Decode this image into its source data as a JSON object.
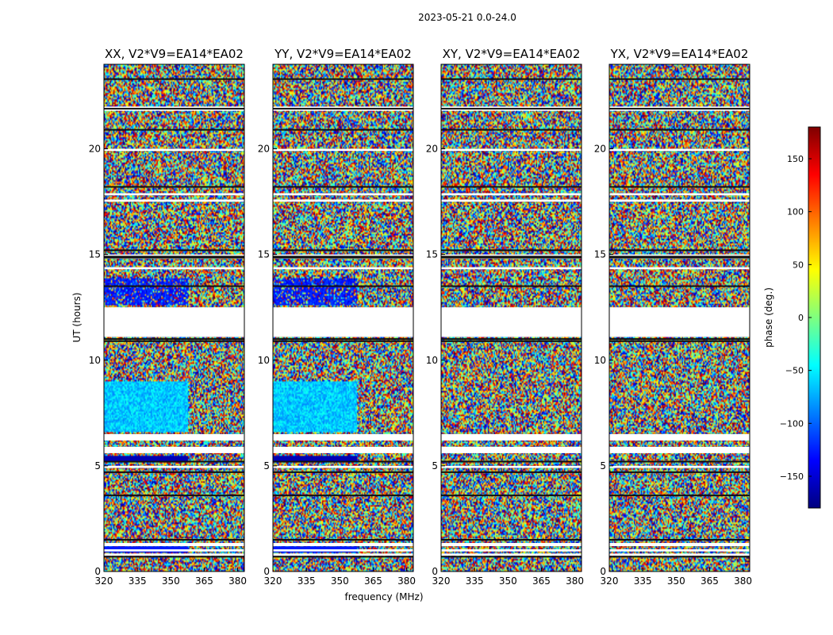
{
  "chart_data": {
    "type": "heatmap",
    "suptitle": "2023-05-21 0.0-24.0",
    "xlabel": "frequency (MHz)",
    "ylabel": "UT (hours)",
    "xlim": [
      320,
      383
    ],
    "ylim": [
      0,
      24
    ],
    "x_ticks": [
      "320",
      "335",
      "350",
      "365",
      "380"
    ],
    "y_ticks": [
      "0",
      "5",
      "10",
      "15",
      "20"
    ],
    "colorbar": {
      "label": "phase (deg.)",
      "range": [
        -180,
        180
      ],
      "ticks": [
        "150",
        "100",
        "50",
        "0",
        "−50",
        "−100",
        "−150"
      ],
      "colormap": [
        "#00007f",
        "#0000ff",
        "#007fff",
        "#00ffff",
        "#7fff7f",
        "#ffff00",
        "#ff7f00",
        "#ff0000",
        "#7f0000"
      ]
    },
    "panels": [
      {
        "title": "XX, V2*V9=EA14*EA02",
        "seed": 11,
        "blue_blocks": true
      },
      {
        "title": "YY, V2*V9=EA14*EA02",
        "seed": 23,
        "blue_blocks": true
      },
      {
        "title": "XY, V2*V9=EA14*EA02",
        "seed": 37,
        "blue_blocks": false
      },
      {
        "title": "YX, V2*V9=EA14*EA02",
        "seed": 53,
        "blue_blocks": false
      }
    ],
    "gaps_ut_hours": [
      [
        12.5,
        11.1
      ],
      [
        22.0,
        21.8
      ],
      [
        20.0,
        19.9
      ],
      [
        17.9,
        17.8
      ],
      [
        17.6,
        17.5
      ],
      [
        15.0,
        14.8
      ],
      [
        14.4,
        14.3
      ],
      [
        6.5,
        6.2
      ],
      [
        5.9,
        5.6
      ],
      [
        5.0,
        4.9
      ],
      [
        1.35,
        1.2
      ],
      [
        1.05,
        0.95
      ],
      [
        0.85,
        0.75
      ]
    ],
    "dark_lines_ut_hours": [
      23.3,
      21.9,
      20.9,
      18.2,
      15.2,
      14.9,
      14.85,
      13.5,
      11.0,
      10.9,
      5.2,
      4.7,
      3.6,
      1.5,
      0.7
    ]
  }
}
